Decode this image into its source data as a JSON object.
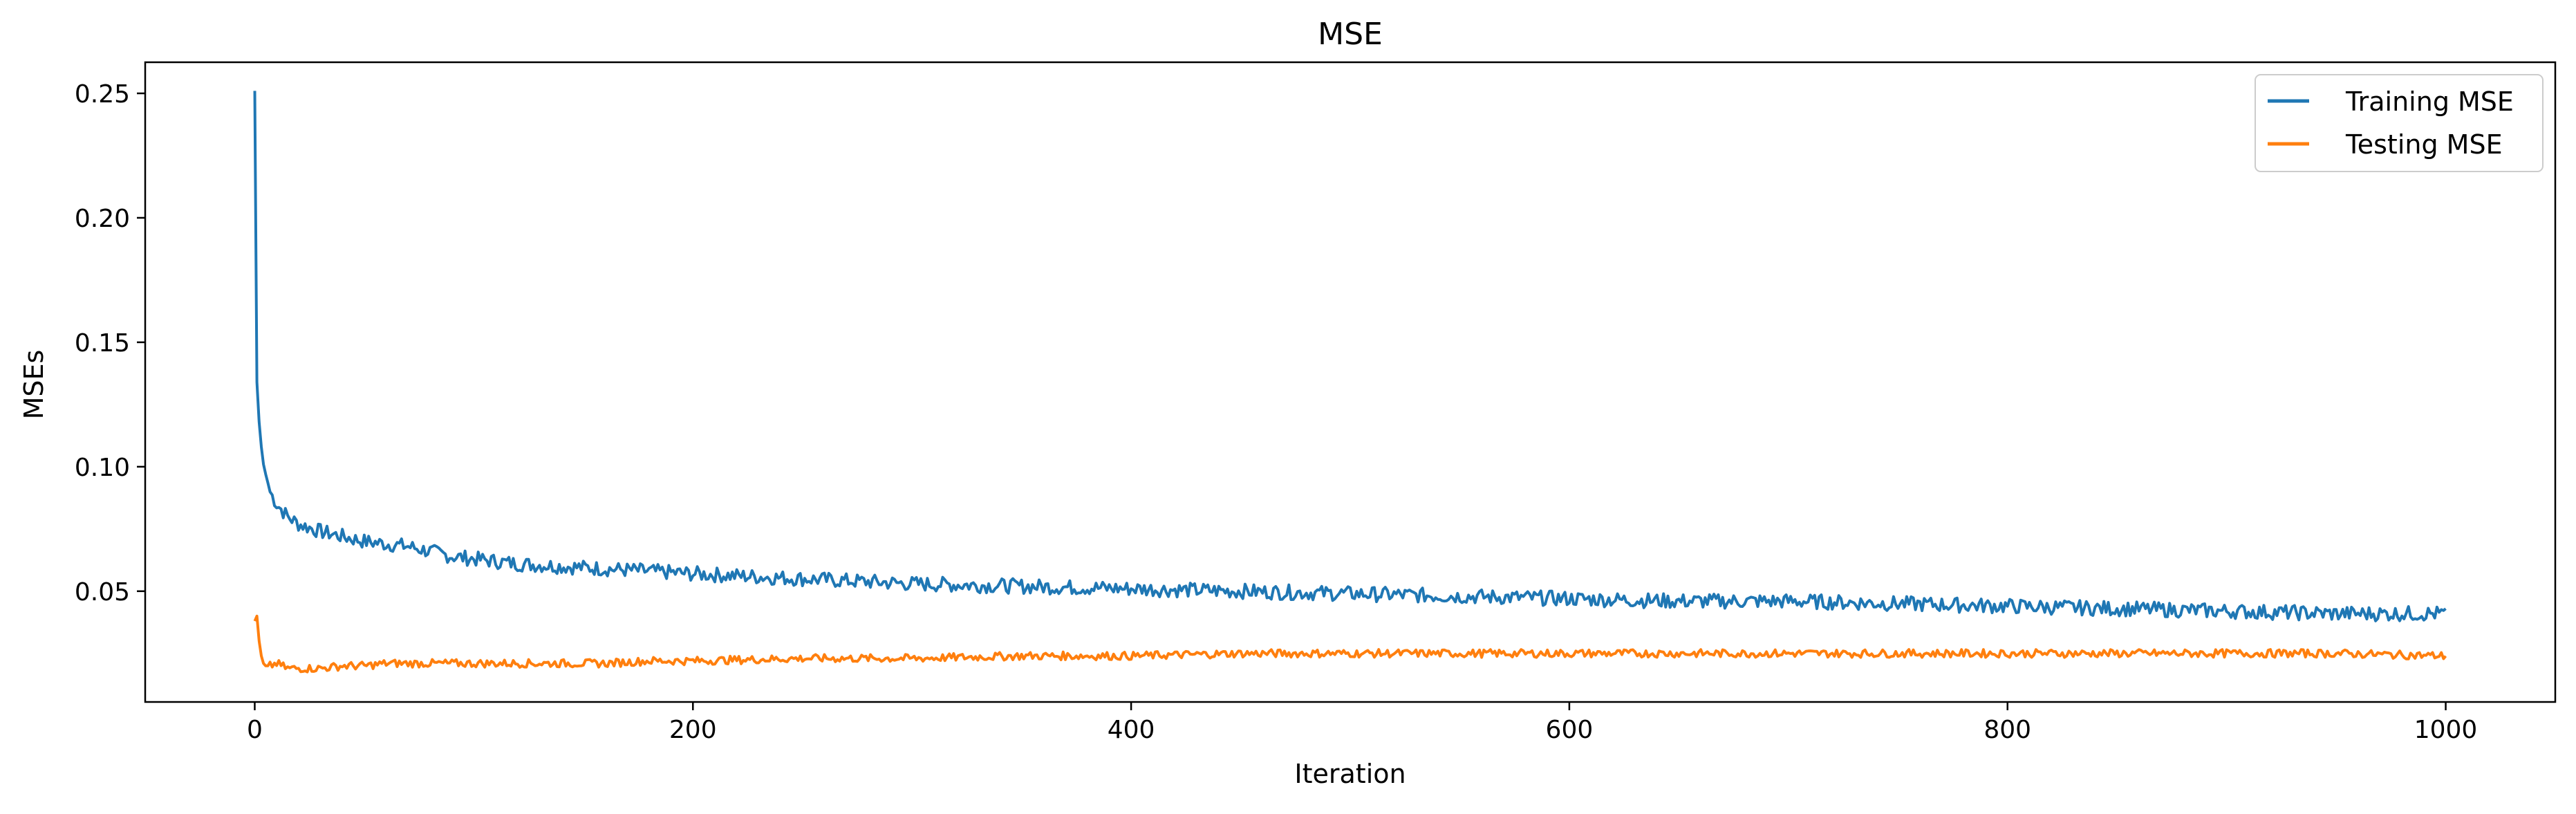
{
  "chart_data": {
    "type": "line",
    "title": "MSE",
    "xlabel": "Iteration",
    "ylabel": "MSEs",
    "xlim": [
      -50,
      1050
    ],
    "ylim": [
      0.0055,
      0.2625
    ],
    "xticks": [
      0,
      200,
      400,
      600,
      800,
      1000
    ],
    "xtick_labels": [
      "0",
      "200",
      "400",
      "600",
      "800",
      "1000"
    ],
    "yticks": [
      0.05,
      0.1,
      0.15,
      0.2,
      0.25
    ],
    "ytick_labels": [
      "0.05",
      "0.10",
      "0.15",
      "0.20",
      "0.25"
    ],
    "grid": false,
    "legend_position": "top-right",
    "series": [
      {
        "name": "Training MSE",
        "color": "#1f77b4",
        "x": [
          0,
          1,
          2,
          3,
          4,
          5,
          7,
          10,
          15,
          20,
          30,
          40,
          50,
          60,
          70,
          80,
          90,
          100,
          120,
          140,
          160,
          180,
          200,
          250,
          300,
          350,
          400,
          450,
          500,
          550,
          600,
          650,
          700,
          750,
          800,
          850,
          900,
          950,
          1000
        ],
        "y": [
          0.251,
          0.134,
          0.118,
          0.108,
          0.101,
          0.097,
          0.09,
          0.085,
          0.08,
          0.077,
          0.074,
          0.072,
          0.07,
          0.069,
          0.068,
          0.066,
          0.064,
          0.063,
          0.061,
          0.06,
          0.059,
          0.058,
          0.057,
          0.055,
          0.053,
          0.052,
          0.051,
          0.05,
          0.049,
          0.048,
          0.047,
          0.046,
          0.046,
          0.045,
          0.044,
          0.043,
          0.042,
          0.041,
          0.041
        ]
      },
      {
        "name": "Testing MSE",
        "color": "#ff7f0e",
        "x": [
          0,
          1,
          2,
          3,
          4,
          5,
          7,
          10,
          15,
          20,
          30,
          40,
          50,
          60,
          70,
          80,
          90,
          100,
          120,
          140,
          160,
          180,
          200,
          250,
          300,
          350,
          400,
          450,
          500,
          550,
          600,
          650,
          700,
          750,
          800,
          850,
          900,
          950,
          1000
        ],
        "y": [
          0.038,
          0.04,
          0.03,
          0.024,
          0.021,
          0.02,
          0.02,
          0.021,
          0.019,
          0.019,
          0.019,
          0.02,
          0.02,
          0.021,
          0.021,
          0.021,
          0.021,
          0.021,
          0.021,
          0.021,
          0.021,
          0.022,
          0.022,
          0.023,
          0.023,
          0.024,
          0.024,
          0.025,
          0.025,
          0.025,
          0.025,
          0.025,
          0.025,
          0.025,
          0.025,
          0.025,
          0.025,
          0.025,
          0.024
        ]
      }
    ]
  }
}
